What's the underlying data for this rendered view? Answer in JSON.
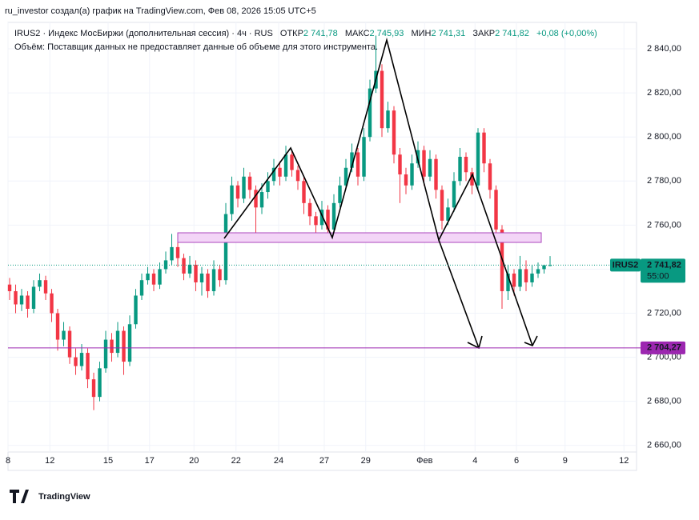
{
  "header": {
    "author_line": "ru_investor создал(а) график на TradingView.com, Фев 08, 2026 15:05 UTC+5",
    "symbol_line": "IRUS2 · Индекс МосБиржи (дополнительная сессия) · 4ч · RUS",
    "open_label": "ОТКР",
    "open": "2 741,78",
    "high_label": "МАКС",
    "high": "2 745,93",
    "low_label": "МИН",
    "low": "2 741,31",
    "close_label": "ЗАКР",
    "close": "2 741,82",
    "change": "+0,08 (+0,00%)",
    "volume_line": "Объём: Поставщик данных не предоставляет данные об объеме для этого инструмента."
  },
  "footer": {
    "brand": "TradingView"
  },
  "chart_data": {
    "type": "candlestick",
    "up_color": "#089981",
    "down_color": "#f23645",
    "xlim": [
      -0.27,
      104.4
    ],
    "ylim": [
      2657,
      2852
    ],
    "xticks": [
      {
        "value": -0.27,
        "label": "8"
      },
      {
        "value": 6.7,
        "label": "12"
      },
      {
        "value": 16.4,
        "label": "15"
      },
      {
        "value": 23.3,
        "label": "17"
      },
      {
        "value": 30.7,
        "label": "20"
      },
      {
        "value": 37.7,
        "label": "22"
      },
      {
        "value": 44.8,
        "label": "24"
      },
      {
        "value": 52.4,
        "label": "27"
      },
      {
        "value": 59.3,
        "label": "29"
      },
      {
        "value": 69.1,
        "label": "Фев"
      },
      {
        "value": 77.5,
        "label": "4"
      },
      {
        "value": 84.4,
        "label": "6"
      },
      {
        "value": 92.5,
        "label": "9"
      },
      {
        "value": 102.3,
        "label": "12"
      }
    ],
    "yticks": [
      {
        "value": 2660,
        "label": "2 660,00"
      },
      {
        "value": 2680,
        "label": "2 680,00"
      },
      {
        "value": 2700,
        "label": "2 700,00"
      },
      {
        "value": 2720,
        "label": "2 720,00"
      },
      {
        "value": 2740,
        "label": "2 740,00"
      },
      {
        "value": 2760,
        "label": "2 760,00"
      },
      {
        "value": 2780,
        "label": "2 780,00"
      },
      {
        "value": 2800,
        "label": "2 800,00"
      },
      {
        "value": 2820,
        "label": "2 820,00"
      },
      {
        "value": 2840,
        "label": "2 840,00"
      }
    ],
    "price_lines": [
      {
        "value": 2704.27,
        "label": "2 704,27",
        "color": "#9c27b0"
      },
      {
        "value": 2741.82,
        "label": "2 741,82",
        "color": "#089981",
        "symbol": "IRUS2",
        "countdown": "55:00"
      }
    ],
    "candles": [
      [
        2733,
        2736,
        2726,
        2730
      ],
      [
        2730,
        2733,
        2720,
        2724
      ],
      [
        2724,
        2731,
        2721,
        2728
      ],
      [
        2728,
        2730,
        2718,
        2722
      ],
      [
        2722,
        2735,
        2720,
        2732
      ],
      [
        2732,
        2738,
        2730,
        2735
      ],
      [
        2735,
        2737,
        2726,
        2729
      ],
      [
        2729,
        2731,
        2716,
        2720
      ],
      [
        2720,
        2722,
        2703,
        2708
      ],
      [
        2708,
        2716,
        2705,
        2712
      ],
      [
        2712,
        2714,
        2697,
        2700
      ],
      [
        2700,
        2704,
        2692,
        2696
      ],
      [
        2696,
        2706,
        2694,
        2702
      ],
      [
        2702,
        2704,
        2686,
        2690
      ],
      [
        2690,
        2693,
        2676,
        2682
      ],
      [
        2682,
        2698,
        2680,
        2695
      ],
      [
        2695,
        2712,
        2693,
        2708
      ],
      [
        2708,
        2711,
        2698,
        2702
      ],
      [
        2702,
        2716,
        2700,
        2712
      ],
      [
        2712,
        2714,
        2692,
        2698
      ],
      [
        2698,
        2719,
        2696,
        2715
      ],
      [
        2715,
        2731,
        2713,
        2728
      ],
      [
        2728,
        2738,
        2726,
        2735
      ],
      [
        2735,
        2741,
        2733,
        2738
      ],
      [
        2738,
        2740,
        2730,
        2733
      ],
      [
        2733,
        2743,
        2731,
        2740
      ],
      [
        2740,
        2748,
        2738,
        2744
      ],
      [
        2744,
        2756,
        2742,
        2750
      ],
      [
        2750,
        2753,
        2741,
        2745
      ],
      [
        2745,
        2747,
        2735,
        2738
      ],
      [
        2738,
        2746,
        2736,
        2742
      ],
      [
        2742,
        2744,
        2730,
        2734
      ],
      [
        2734,
        2741,
        2728,
        2738
      ],
      [
        2738,
        2740,
        2727,
        2730
      ],
      [
        2730,
        2744,
        2728,
        2740
      ],
      [
        2740,
        2742,
        2732,
        2735
      ],
      [
        2735,
        2770,
        2733,
        2765
      ],
      [
        2765,
        2782,
        2762,
        2778
      ],
      [
        2778,
        2780,
        2768,
        2772
      ],
      [
        2772,
        2786,
        2770,
        2782
      ],
      [
        2782,
        2784,
        2772,
        2776
      ],
      [
        2776,
        2778,
        2754,
        2768
      ],
      [
        2768,
        2779,
        2765,
        2775
      ],
      [
        2775,
        2784,
        2772,
        2780
      ],
      [
        2780,
        2790,
        2778,
        2786
      ],
      [
        2786,
        2789,
        2778,
        2782
      ],
      [
        2782,
        2796,
        2780,
        2792
      ],
      [
        2792,
        2794,
        2782,
        2785
      ],
      [
        2785,
        2787,
        2776,
        2780
      ],
      [
        2780,
        2782,
        2765,
        2770
      ],
      [
        2770,
        2772,
        2760,
        2764
      ],
      [
        2764,
        2766,
        2755,
        2760
      ],
      [
        2760,
        2771,
        2758,
        2767
      ],
      [
        2767,
        2769,
        2754,
        2758
      ],
      [
        2758,
        2774,
        2756,
        2770
      ],
      [
        2770,
        2782,
        2768,
        2778
      ],
      [
        2778,
        2790,
        2776,
        2786
      ],
      [
        2786,
        2797,
        2784,
        2793
      ],
      [
        2793,
        2795,
        2778,
        2782
      ],
      [
        2782,
        2804,
        2780,
        2800
      ],
      [
        2800,
        2826,
        2798,
        2822
      ],
      [
        2822,
        2846,
        2820,
        2830
      ],
      [
        2830,
        2833,
        2800,
        2804
      ],
      [
        2804,
        2816,
        2802,
        2812
      ],
      [
        2812,
        2814,
        2788,
        2792
      ],
      [
        2792,
        2795,
        2770,
        2783
      ],
      [
        2783,
        2786,
        2774,
        2778
      ],
      [
        2778,
        2792,
        2776,
        2788
      ],
      [
        2788,
        2798,
        2786,
        2794
      ],
      [
        2794,
        2796,
        2778,
        2782
      ],
      [
        2782,
        2794,
        2780,
        2790
      ],
      [
        2790,
        2792,
        2772,
        2776
      ],
      [
        2776,
        2778,
        2758,
        2762
      ],
      [
        2762,
        2772,
        2760,
        2768
      ],
      [
        2768,
        2784,
        2766,
        2780
      ],
      [
        2780,
        2795,
        2778,
        2791
      ],
      [
        2791,
        2793,
        2780,
        2784
      ],
      [
        2784,
        2786,
        2774,
        2778
      ],
      [
        2778,
        2804,
        2776,
        2802
      ],
      [
        2802,
        2804,
        2784,
        2788
      ],
      [
        2788,
        2790,
        2772,
        2776
      ],
      [
        2776,
        2778,
        2752,
        2758
      ],
      [
        2758,
        2760,
        2722,
        2730
      ],
      [
        2730,
        2742,
        2726,
        2738
      ],
      [
        2738,
        2740,
        2728,
        2732
      ],
      [
        2732,
        2746,
        2730,
        2740
      ],
      [
        2740,
        2744,
        2730,
        2734
      ],
      [
        2734,
        2742,
        2732,
        2738
      ],
      [
        2738,
        2743,
        2736,
        2740
      ],
      [
        2740,
        2742,
        2738,
        2741.78
      ],
      [
        2741.78,
        2745.93,
        2741.31,
        2741.82
      ]
    ]
  }
}
